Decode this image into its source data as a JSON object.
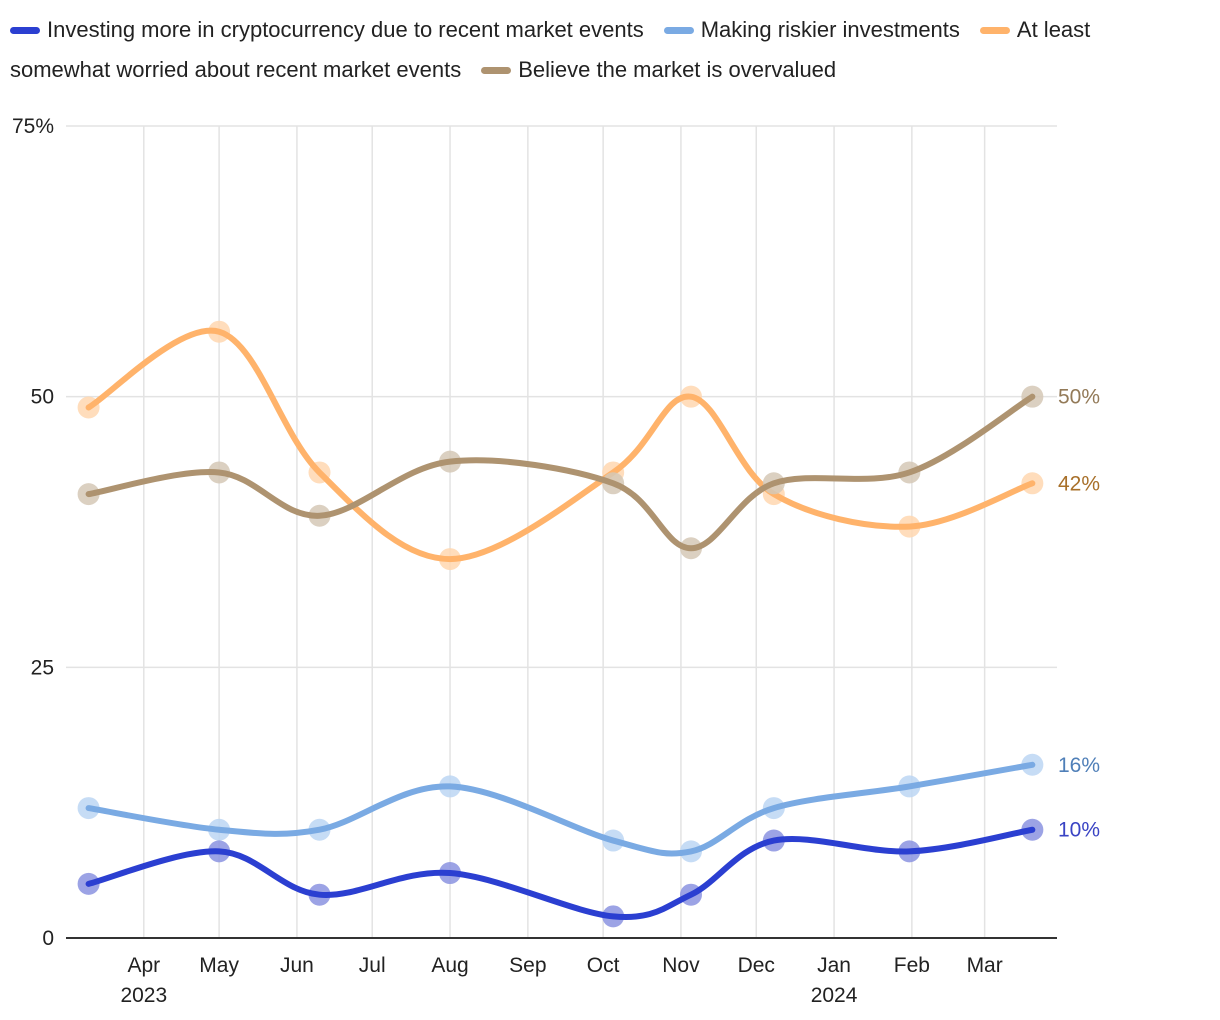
{
  "chart_data": {
    "type": "line",
    "y_axis_ticks": [
      "0",
      "25",
      "50",
      "75%"
    ],
    "ylim": [
      0,
      75
    ],
    "x_month_ticks": [
      "Apr",
      "May",
      "Jun",
      "Jul",
      "Aug",
      "Sep",
      "Oct",
      "Nov",
      "Dec",
      "Jan",
      "Feb",
      "Mar"
    ],
    "x_year_labels": [
      {
        "label": "2023",
        "under": "Apr"
      },
      {
        "label": "2024",
        "under": "Jan"
      }
    ],
    "grid": "vertical-and-horizontal",
    "legend_placement": "top",
    "x": [
      "2023-03-10",
      "2023-05-01",
      "2023-06-10",
      "2023-08-01",
      "2023-10-05",
      "2023-11-05",
      "2023-12-08",
      "2024-01-31",
      "2024-03-20"
    ],
    "series": [
      {
        "name": "Investing more in cryptocurrency due to recent market events",
        "color": "#2b3fd1",
        "point_color": "#8b93e0",
        "values": [
          5,
          8,
          4,
          6,
          2,
          4,
          9,
          8,
          10
        ],
        "end_label": "10%",
        "label_color": "#3a44c4"
      },
      {
        "name": "Making riskier investments",
        "color": "#7aaae3",
        "point_color": "#bcd6f3",
        "values": [
          12,
          10,
          10,
          14,
          9,
          8,
          12,
          14,
          16
        ],
        "end_label": "16%",
        "label_color": "#4f7fb8"
      },
      {
        "name": "At least somewhat worried about recent market events",
        "color": "#ffb36b",
        "point_color": "#ffd7b0",
        "values": [
          49,
          56,
          43,
          35,
          43,
          50,
          41,
          38,
          42
        ],
        "end_label": "42%",
        "label_color": "#a8702a"
      },
      {
        "name": "Believe the market is overvalued",
        "color": "#ae9370",
        "point_color": "#d5c8b6",
        "values": [
          41,
          43,
          39,
          44,
          42,
          36,
          42,
          43,
          50
        ],
        "end_label": "50%",
        "label_color": "#937a58"
      }
    ]
  }
}
